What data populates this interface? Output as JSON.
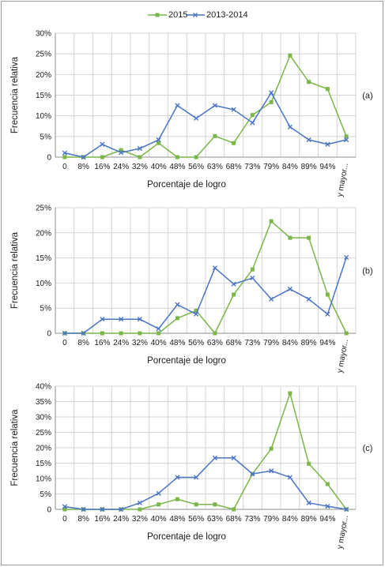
{
  "colors": {
    "s2015": "#7ab648",
    "s2013": "#4a74c4",
    "grid": "#d4d4d4",
    "axis": "#8c8c8c",
    "text": "#1a1a1a"
  },
  "legend": {
    "s2015": "2015",
    "s2013": "2013-2014"
  },
  "chart_data": [
    {
      "type": "line",
      "panel_label": "(a)",
      "xlabel": "Porcentaje de logro",
      "ylabel": "Frecuencia relativa",
      "categories": [
        "0",
        "8%",
        "16%",
        "24%",
        "32%",
        "40%",
        "48%",
        "56%",
        "63%",
        "68%",
        "73%",
        "79%",
        "84%",
        "89%",
        "94%",
        "y mayor..."
      ],
      "yticks": [
        "0",
        "5%",
        "10%",
        "15%",
        "20%",
        "25%",
        "30%"
      ],
      "ylim": [
        0,
        30
      ],
      "grid": true,
      "series": [
        {
          "name": "2015",
          "color": "#7ab648",
          "marker": "square",
          "values": [
            0,
            0,
            0,
            1.7,
            0,
            3.4,
            0,
            0,
            5.1,
            3.4,
            10.2,
            13.3,
            24.6,
            18.2,
            16.5,
            5.0
          ]
        },
        {
          "name": "2013-2014",
          "color": "#4a74c4",
          "marker": "cross",
          "values": [
            1.0,
            0,
            3.1,
            1.1,
            2.1,
            4.2,
            12.5,
            9.4,
            12.5,
            11.5,
            8.3,
            15.6,
            7.3,
            4.2,
            3.1,
            4.2
          ]
        }
      ]
    },
    {
      "type": "line",
      "panel_label": "(b)",
      "xlabel": "Porcentaje de logro",
      "ylabel": "Frecuencia relativa",
      "categories": [
        "0",
        "8%",
        "16%",
        "24%",
        "32%",
        "40%",
        "48%",
        "56%",
        "63%",
        "68%",
        "73%",
        "79%",
        "84%",
        "89%",
        "94%",
        "y mayor..."
      ],
      "yticks": [
        "0",
        "5%",
        "10%",
        "15%",
        "20%",
        "25%"
      ],
      "ylim": [
        0,
        25
      ],
      "grid": true,
      "series": [
        {
          "name": "2015",
          "color": "#7ab648",
          "marker": "square",
          "values": [
            0,
            0,
            0,
            0,
            0,
            0,
            3.0,
            4.5,
            0,
            7.7,
            12.7,
            22.3,
            19.0,
            19.0,
            7.7,
            0
          ]
        },
        {
          "name": "2013-2014",
          "color": "#4a74c4",
          "marker": "cross",
          "values": [
            0,
            0,
            2.8,
            2.8,
            2.8,
            0.9,
            5.7,
            3.8,
            13.0,
            9.8,
            11.0,
            6.8,
            8.8,
            6.8,
            3.8,
            15.1
          ]
        }
      ]
    },
    {
      "type": "line",
      "panel_label": "(c)",
      "xlabel": "Porcentaje de logro",
      "ylabel": "Frecuencia relativa",
      "categories": [
        "0",
        "8%",
        "16%",
        "24%",
        "32%",
        "40%",
        "48%",
        "56%",
        "63%",
        "68%",
        "73%",
        "79%",
        "84%",
        "89%",
        "94%",
        "y mayor..."
      ],
      "yticks": [
        "0",
        "5%",
        "10%",
        "15%",
        "20%",
        "25%",
        "30%",
        "35%",
        "40%"
      ],
      "ylim": [
        0,
        40
      ],
      "grid": true,
      "series": [
        {
          "name": "2015",
          "color": "#7ab648",
          "marker": "square",
          "values": [
            0,
            0,
            0,
            0,
            0,
            1.6,
            3.3,
            1.6,
            1.6,
            0,
            11.5,
            19.7,
            37.7,
            14.8,
            8.2,
            0
          ]
        },
        {
          "name": "2013-2014",
          "color": "#4a74c4",
          "marker": "cross",
          "values": [
            0.9,
            0,
            0,
            0,
            2.1,
            5.2,
            10.4,
            10.4,
            16.7,
            16.7,
            11.5,
            12.5,
            10.4,
            2.1,
            1.0,
            0
          ]
        }
      ]
    }
  ]
}
